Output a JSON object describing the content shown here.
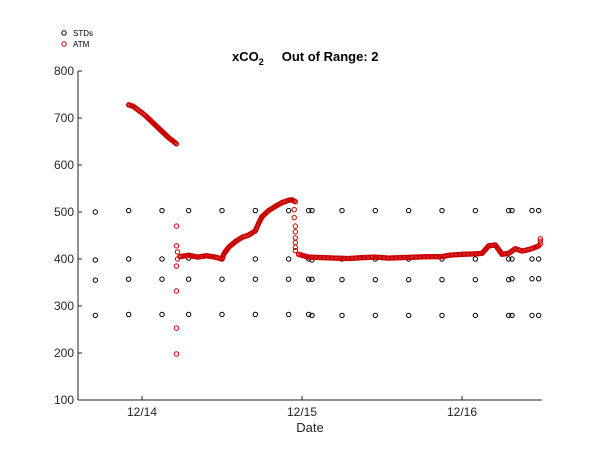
{
  "chart_data": {
    "type": "scatter",
    "title": {
      "main": "xCO",
      "subscript": "2",
      "status": "Out of Range: 2"
    },
    "xlabel": "Date",
    "ylabel": "",
    "xlim": [
      "2015-12-13T14:24",
      "2015-12-16T12:00"
    ],
    "ylim": [
      100,
      800
    ],
    "yticks": [
      100,
      200,
      300,
      400,
      500,
      600,
      700,
      800
    ],
    "xticks": [
      {
        "value": "2015-12-14T00:00",
        "label": "12/14"
      },
      {
        "value": "2015-12-15T00:00",
        "label": "12/15"
      },
      {
        "value": "2015-12-16T00:00",
        "label": "12/16"
      }
    ],
    "grid": false,
    "legend": {
      "position": "top-left"
    },
    "series": [
      {
        "name": "STDs",
        "color": "#000000",
        "marker": "open-circle",
        "points": [
          [
            "2015-12-13T17:00",
            280
          ],
          [
            "2015-12-13T17:00",
            355
          ],
          [
            "2015-12-13T17:00",
            398
          ],
          [
            "2015-12-13T17:00",
            500
          ],
          [
            "2015-12-13T22:00",
            282
          ],
          [
            "2015-12-13T22:00",
            357
          ],
          [
            "2015-12-13T22:00",
            400
          ],
          [
            "2015-12-13T22:00",
            503
          ],
          [
            "2015-12-14T03:00",
            282
          ],
          [
            "2015-12-14T03:00",
            357
          ],
          [
            "2015-12-14T03:00",
            400
          ],
          [
            "2015-12-14T03:00",
            503
          ],
          [
            "2015-12-14T07:00",
            282
          ],
          [
            "2015-12-14T07:00",
            357
          ],
          [
            "2015-12-14T07:00",
            402
          ],
          [
            "2015-12-14T07:00",
            503
          ],
          [
            "2015-12-14T12:00",
            282
          ],
          [
            "2015-12-14T12:00",
            357
          ],
          [
            "2015-12-14T12:00",
            400
          ],
          [
            "2015-12-14T12:00",
            503
          ],
          [
            "2015-12-14T17:00",
            282
          ],
          [
            "2015-12-14T17:00",
            357
          ],
          [
            "2015-12-14T17:00",
            400
          ],
          [
            "2015-12-14T17:00",
            503
          ],
          [
            "2015-12-14T22:00",
            282
          ],
          [
            "2015-12-14T22:00",
            357
          ],
          [
            "2015-12-14T22:00",
            400
          ],
          [
            "2015-12-14T22:00",
            503
          ],
          [
            "2015-12-15T01:00",
            282
          ],
          [
            "2015-12-15T01:00",
            357
          ],
          [
            "2015-12-15T01:00",
            400
          ],
          [
            "2015-12-15T01:00",
            503
          ],
          [
            "2015-12-15T01:30",
            280
          ],
          [
            "2015-12-15T01:30",
            357
          ],
          [
            "2015-12-15T01:30",
            398
          ],
          [
            "2015-12-15T01:30",
            503
          ],
          [
            "2015-12-15T06:00",
            280
          ],
          [
            "2015-12-15T06:00",
            356
          ],
          [
            "2015-12-15T06:00",
            400
          ],
          [
            "2015-12-15T06:00",
            503
          ],
          [
            "2015-12-15T11:00",
            280
          ],
          [
            "2015-12-15T11:00",
            356
          ],
          [
            "2015-12-15T11:00",
            400
          ],
          [
            "2015-12-15T11:00",
            503
          ],
          [
            "2015-12-15T16:00",
            280
          ],
          [
            "2015-12-15T16:00",
            356
          ],
          [
            "2015-12-15T16:00",
            400
          ],
          [
            "2015-12-15T16:00",
            503
          ],
          [
            "2015-12-15T21:00",
            280
          ],
          [
            "2015-12-15T21:00",
            356
          ],
          [
            "2015-12-15T21:00",
            400
          ],
          [
            "2015-12-15T21:00",
            503
          ],
          [
            "2015-12-16T02:00",
            280
          ],
          [
            "2015-12-16T02:00",
            356
          ],
          [
            "2015-12-16T02:00",
            400
          ],
          [
            "2015-12-16T02:00",
            503
          ],
          [
            "2015-12-16T07:00",
            280
          ],
          [
            "2015-12-16T07:00",
            356
          ],
          [
            "2015-12-16T07:00",
            400
          ],
          [
            "2015-12-16T07:00",
            503
          ],
          [
            "2015-12-16T07:30",
            280
          ],
          [
            "2015-12-16T07:30",
            358
          ],
          [
            "2015-12-16T07:30",
            400
          ],
          [
            "2015-12-16T07:30",
            503
          ],
          [
            "2015-12-16T10:30",
            280
          ],
          [
            "2015-12-16T10:30",
            358
          ],
          [
            "2015-12-16T10:30",
            400
          ],
          [
            "2015-12-16T10:30",
            503
          ],
          [
            "2015-12-16T11:30",
            280
          ],
          [
            "2015-12-16T11:30",
            358
          ],
          [
            "2015-12-16T11:30",
            400
          ],
          [
            "2015-12-16T11:30",
            503
          ]
        ]
      },
      {
        "name": "ATM",
        "color": "#cc0000",
        "marker": "open-circle",
        "segments": [
          {
            "type": "curve",
            "points": [
              [
                "2015-12-13T22:00",
                728
              ],
              [
                "2015-12-13T22:40",
                725
              ],
              [
                "2015-12-13T23:20",
                718
              ],
              [
                "2015-12-14T00:00",
                711
              ],
              [
                "2015-12-14T00:40",
                703
              ],
              [
                "2015-12-14T01:20",
                694
              ],
              [
                "2015-12-14T02:00",
                685
              ],
              [
                "2015-12-14T02:40",
                676
              ],
              [
                "2015-12-14T03:20",
                667
              ],
              [
                "2015-12-14T04:00",
                658
              ],
              [
                "2015-12-14T04:45",
                650
              ],
              [
                "2015-12-14T05:10",
                645
              ]
            ]
          },
          {
            "type": "points",
            "points": [
              [
                "2015-12-14T05:10",
                470
              ],
              [
                "2015-12-14T05:10",
                428
              ],
              [
                "2015-12-14T05:10",
                385
              ],
              [
                "2015-12-14T05:10",
                332
              ],
              [
                "2015-12-14T05:10",
                253
              ],
              [
                "2015-12-14T05:10",
                198
              ],
              [
                "2015-12-14T05:20",
                415
              ],
              [
                "2015-12-14T05:20",
                400
              ]
            ]
          },
          {
            "type": "curve",
            "points": [
              [
                "2015-12-14T05:40",
                405
              ],
              [
                "2015-12-14T07:00",
                408
              ],
              [
                "2015-12-14T08:20",
                404
              ],
              [
                "2015-12-14T09:40",
                407
              ],
              [
                "2015-12-14T11:00",
                404
              ],
              [
                "2015-12-14T12:00",
                400
              ],
              [
                "2015-12-14T12:20",
                412
              ],
              [
                "2015-12-14T13:00",
                425
              ],
              [
                "2015-12-14T14:00",
                437
              ],
              [
                "2015-12-14T15:00",
                446
              ],
              [
                "2015-12-14T16:00",
                451
              ],
              [
                "2015-12-14T17:00",
                460
              ],
              [
                "2015-12-14T17:30",
                476
              ],
              [
                "2015-12-14T18:00",
                490
              ],
              [
                "2015-12-14T19:00",
                503
              ],
              [
                "2015-12-14T20:00",
                512
              ],
              [
                "2015-12-14T21:00",
                520
              ],
              [
                "2015-12-14T22:00",
                525
              ],
              [
                "2015-12-14T22:30",
                526
              ],
              [
                "2015-12-14T23:00",
                522
              ]
            ]
          },
          {
            "type": "points",
            "points": [
              [
                "2015-12-14T22:50",
                505
              ],
              [
                "2015-12-14T22:50",
                488
              ],
              [
                "2015-12-14T23:00",
                470
              ],
              [
                "2015-12-14T23:00",
                458
              ],
              [
                "2015-12-14T23:00",
                445
              ],
              [
                "2015-12-14T23:00",
                435
              ],
              [
                "2015-12-14T23:00",
                425
              ],
              [
                "2015-12-14T23:00",
                418
              ]
            ]
          },
          {
            "type": "curve",
            "points": [
              [
                "2015-12-14T23:30",
                410
              ],
              [
                "2015-12-15T01:00",
                404
              ],
              [
                "2015-12-15T03:00",
                403
              ],
              [
                "2015-12-15T05:00",
                402
              ],
              [
                "2015-12-15T07:00",
                401
              ],
              [
                "2015-12-15T09:00",
                403
              ],
              [
                "2015-12-15T11:00",
                404
              ],
              [
                "2015-12-15T13:00",
                402
              ],
              [
                "2015-12-15T15:00",
                403
              ],
              [
                "2015-12-15T17:00",
                404
              ],
              [
                "2015-12-15T19:00",
                405
              ],
              [
                "2015-12-15T21:00",
                405
              ],
              [
                "2015-12-15T22:00",
                408
              ],
              [
                "2015-12-16T00:00",
                410
              ],
              [
                "2015-12-16T02:00",
                411
              ],
              [
                "2015-12-16T03:00",
                412
              ],
              [
                "2015-12-16T04:00",
                428
              ],
              [
                "2015-12-16T05:00",
                430
              ],
              [
                "2015-12-16T06:00",
                410
              ],
              [
                "2015-12-16T07:00",
                412
              ],
              [
                "2015-12-16T08:00",
                422
              ],
              [
                "2015-12-16T09:00",
                417
              ],
              [
                "2015-12-16T10:00",
                420
              ],
              [
                "2015-12-16T11:00",
                425
              ],
              [
                "2015-12-16T11:30",
                428
              ]
            ]
          },
          {
            "type": "points",
            "points": [
              [
                "2015-12-16T11:45",
                432
              ],
              [
                "2015-12-16T11:45",
                438
              ],
              [
                "2015-12-16T11:45",
                443
              ]
            ]
          }
        ]
      }
    ]
  }
}
